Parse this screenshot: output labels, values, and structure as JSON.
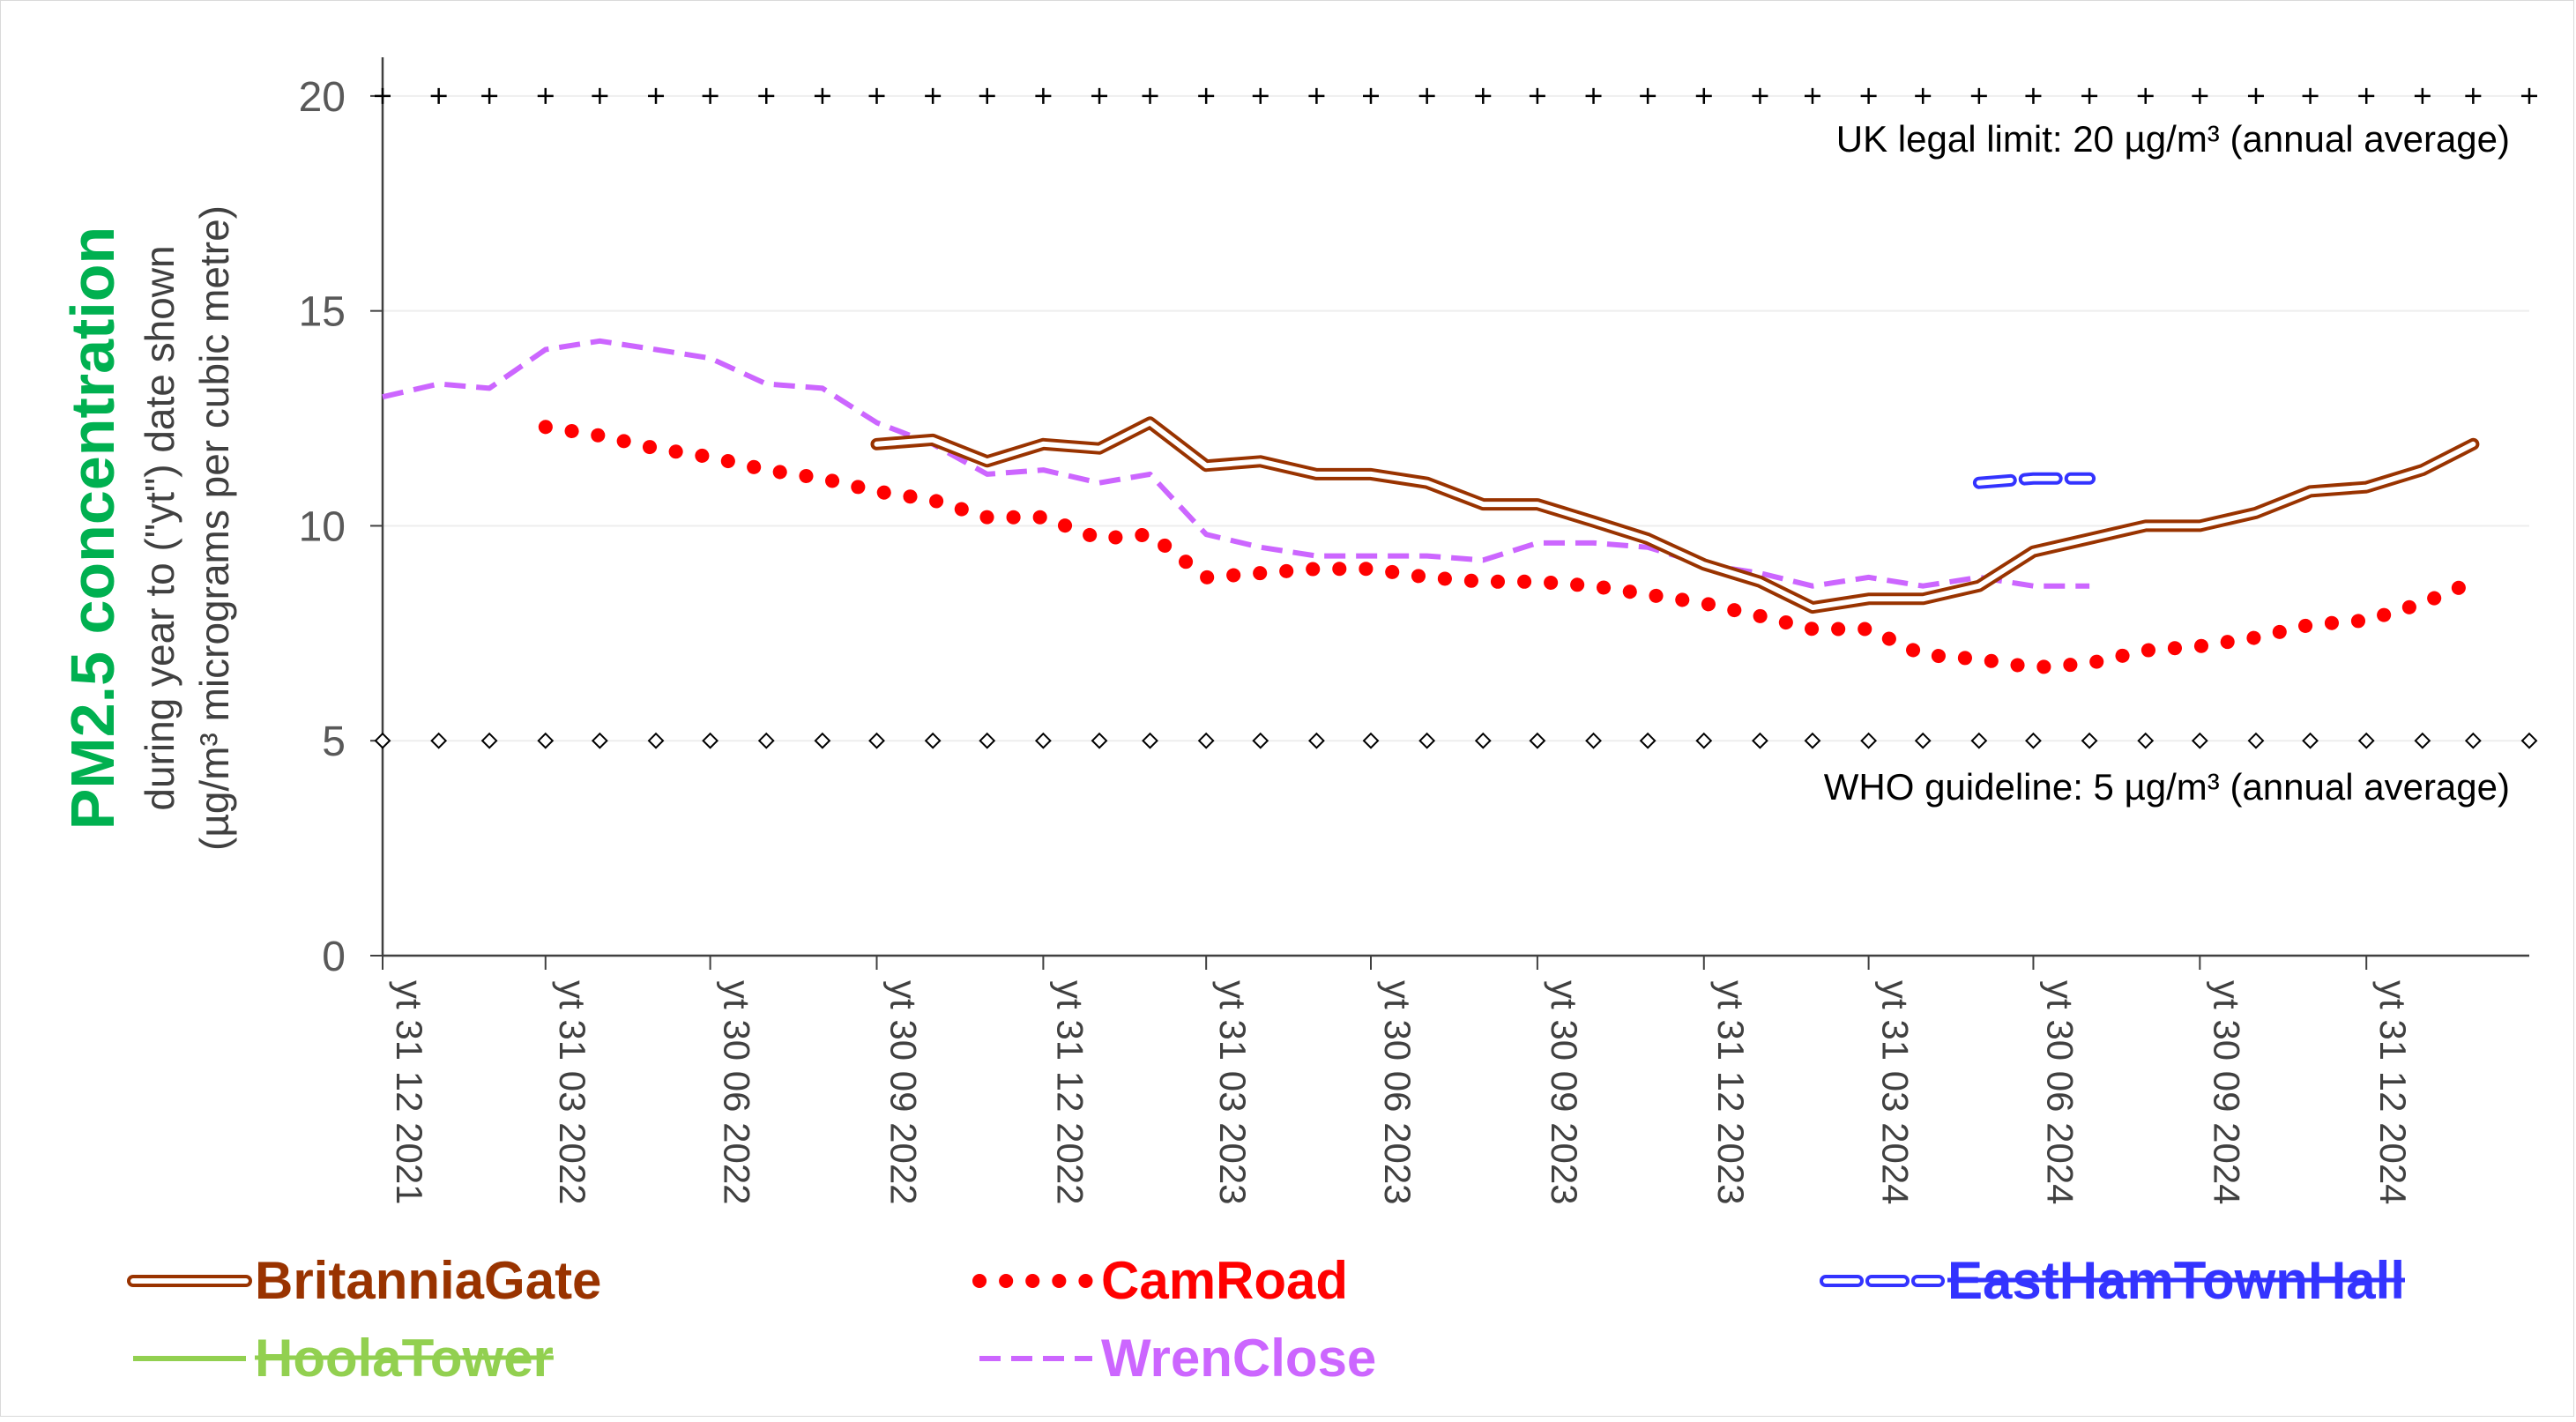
{
  "chart_data": {
    "type": "line",
    "ylabel_title": "PM2.5 concentration",
    "ylabel_line1": "during year to (\"yt\") date shown",
    "ylabel_line2": "(µg/m³ micrograms per cubic metre)",
    "ylim": [
      0,
      20.9
    ],
    "yticks": [
      0,
      5,
      10,
      15,
      20
    ],
    "x_range": [
      "2021-12-31",
      "2025-03-31"
    ],
    "x_ticks": [
      {
        "date": "2021-12-31",
        "label": "yt 31 12 2021"
      },
      {
        "date": "2022-03-31",
        "label": "yt 31 03 2022"
      },
      {
        "date": "2022-06-30",
        "label": "yt 30 06 2022"
      },
      {
        "date": "2022-09-30",
        "label": "yt 30 09 2022"
      },
      {
        "date": "2022-12-31",
        "label": "yt 31 12 2022"
      },
      {
        "date": "2023-03-31",
        "label": "yt 31 03 2023"
      },
      {
        "date": "2023-06-30",
        "label": "yt 30 06 2023"
      },
      {
        "date": "2023-09-30",
        "label": "yt 30 09 2023"
      },
      {
        "date": "2023-12-31",
        "label": "yt 31 12 2023"
      },
      {
        "date": "2024-03-31",
        "label": "yt 31 03 2024"
      },
      {
        "date": "2024-06-30",
        "label": "yt 30 06 2024"
      },
      {
        "date": "2024-09-30",
        "label": "yt 30 09 2024"
      },
      {
        "date": "2024-12-31",
        "label": "yt 31 12 2024"
      }
    ],
    "grid": "horizontal",
    "reference_lines": [
      {
        "value": 20,
        "label": "UK legal limit:  20 µg/m³ (annual average)",
        "marker": "plus"
      },
      {
        "value": 5,
        "label": "WHO guideline:  5 µg/m³ (annual average)",
        "marker": "diamond"
      }
    ],
    "series": [
      {
        "name": "BritanniaGate",
        "color": "#993300",
        "style": "double",
        "x": [
          "2022-09-30",
          "2022-10-31",
          "2022-11-30",
          "2022-12-31",
          "2023-01-31",
          "2023-02-28",
          "2023-03-31",
          "2023-04-30",
          "2023-05-31",
          "2023-06-30",
          "2023-07-31",
          "2023-08-31",
          "2023-09-30",
          "2023-10-31",
          "2023-11-30",
          "2023-12-31",
          "2024-01-31",
          "2024-02-29",
          "2024-03-31",
          "2024-04-30",
          "2024-05-31",
          "2024-06-30",
          "2024-07-31",
          "2024-08-31",
          "2024-09-30",
          "2024-10-31",
          "2024-11-30",
          "2024-12-31",
          "2025-01-31",
          "2025-02-28"
        ],
        "values": [
          11.9,
          12.0,
          11.5,
          11.9,
          11.8,
          12.4,
          11.4,
          11.5,
          11.2,
          11.2,
          11.0,
          10.5,
          10.5,
          10.1,
          9.7,
          9.1,
          8.7,
          8.1,
          8.3,
          8.3,
          8.6,
          9.4,
          9.7,
          10.0,
          10.0,
          10.3,
          10.8,
          10.9,
          11.3,
          11.9
        ]
      },
      {
        "name": "CamRoad",
        "color": "#ff0000",
        "style": "dotted",
        "x": [
          "2022-03-31",
          "2022-04-30",
          "2022-05-31",
          "2022-06-30",
          "2022-07-31",
          "2022-08-31",
          "2022-09-30",
          "2022-10-31",
          "2022-11-30",
          "2022-12-31",
          "2023-01-31",
          "2023-02-28",
          "2023-03-31",
          "2023-04-30",
          "2023-05-31",
          "2023-06-30",
          "2023-07-31",
          "2023-08-31",
          "2023-09-30",
          "2023-10-31",
          "2023-11-30",
          "2023-12-31",
          "2024-01-31",
          "2024-02-29",
          "2024-03-31",
          "2024-04-30",
          "2024-05-31",
          "2024-06-30",
          "2024-07-31",
          "2024-08-31",
          "2024-09-30",
          "2024-10-31",
          "2024-11-30",
          "2024-12-31",
          "2025-01-31",
          "2025-02-28"
        ],
        "values": [
          12.3,
          12.1,
          11.8,
          11.6,
          11.3,
          11.1,
          10.8,
          10.6,
          10.2,
          10.2,
          9.7,
          9.8,
          8.8,
          8.9,
          9.0,
          9.0,
          8.8,
          8.7,
          8.7,
          8.6,
          8.4,
          8.2,
          7.9,
          7.6,
          7.6,
          7.0,
          6.9,
          6.7,
          6.8,
          7.1,
          7.2,
          7.4,
          7.7,
          7.8,
          8.2,
          8.7
        ]
      },
      {
        "name": "EastHamTownHall",
        "color": "#3333ff",
        "style": "double-dashed",
        "strikethrough": true,
        "x": [
          "2024-05-31",
          "2024-06-30",
          "2024-07-31"
        ],
        "values": [
          11.0,
          11.1,
          11.1
        ]
      },
      {
        "name": "HoolaTower",
        "color": "#92d050",
        "style": "solid",
        "strikethrough": true,
        "x": [],
        "values": []
      },
      {
        "name": "WrenClose",
        "color": "#cc66ff",
        "style": "dashed",
        "x": [
          "2021-12-31",
          "2022-01-31",
          "2022-02-28",
          "2022-03-31",
          "2022-04-30",
          "2022-05-31",
          "2022-06-30",
          "2022-07-31",
          "2022-08-31",
          "2022-09-30",
          "2022-10-31",
          "2022-11-30",
          "2022-12-31",
          "2023-01-31",
          "2023-02-28",
          "2023-03-31",
          "2023-04-30",
          "2023-05-31",
          "2023-06-30",
          "2023-07-31",
          "2023-08-31",
          "2023-09-30",
          "2023-10-31",
          "2023-11-30",
          "2023-12-31",
          "2024-01-31",
          "2024-02-29",
          "2024-03-31",
          "2024-04-30",
          "2024-05-31",
          "2024-06-30",
          "2024-07-31"
        ],
        "values": [
          13.0,
          13.3,
          13.2,
          14.1,
          14.3,
          14.1,
          13.9,
          13.3,
          13.2,
          12.4,
          11.9,
          11.2,
          11.3,
          11.0,
          11.2,
          9.8,
          9.5,
          9.3,
          9.3,
          9.3,
          9.2,
          9.6,
          9.6,
          9.5,
          9.1,
          8.9,
          8.6,
          8.8,
          8.6,
          8.8,
          8.6,
          8.6
        ]
      }
    ]
  }
}
